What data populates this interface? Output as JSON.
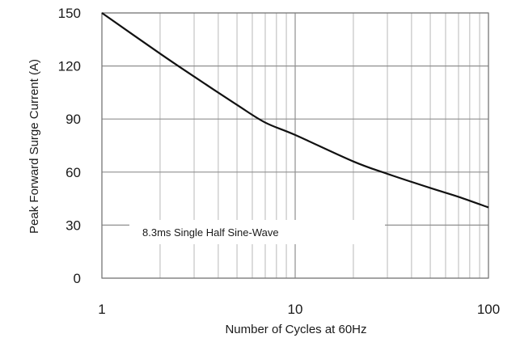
{
  "chart_data": {
    "type": "line",
    "xlabel": "Number of Cycles at 60Hz",
    "ylabel": "Peak Forward Surge Current (A)",
    "x_scale": "log",
    "xlim": [
      1,
      100
    ],
    "ylim": [
      0,
      150
    ],
    "x_ticks": [
      1,
      10,
      100
    ],
    "x_tick_labels": [
      "1",
      "10",
      "100"
    ],
    "y_ticks": [
      0,
      30,
      60,
      90,
      120,
      150
    ],
    "y_tick_labels": [
      "0",
      "30",
      "60",
      "90",
      "120",
      "150"
    ],
    "grid": true,
    "annotation": "8.3ms Single Half Sine-Wave",
    "series": [
      {
        "x": [
          1,
          2,
          3,
          5,
          7,
          10,
          20,
          30,
          50,
          70,
          100
        ],
        "y": [
          150,
          127,
          114,
          98,
          88,
          81,
          66,
          59,
          51,
          46,
          40
        ]
      }
    ]
  }
}
